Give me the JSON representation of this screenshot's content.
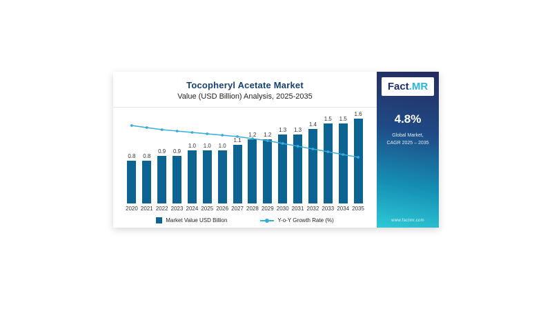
{
  "card": {
    "title": "Tocopheryl Acetate Market",
    "subtitle": "Value (USD Billion) Analysis, 2025-2035"
  },
  "legend": {
    "bar_label": "Market Value USD Billion",
    "line_label": "Y-o-Y Growth Rate (%)"
  },
  "side_panel": {
    "logo_fact": "Fact",
    "logo_mr": ".MR",
    "cagr_value": "4.8%",
    "cagr_label_line1": "Global Market,",
    "cagr_label_line2": "CAGR 2025 – 2035",
    "website": "www.factmr.com"
  },
  "colors": {
    "bar": "#0d6493",
    "line": "#38acdb",
    "title": "#16406f",
    "panel_top": "#262b5e",
    "panel_bottom": "#2fc9d6"
  },
  "chart_data": {
    "type": "bar",
    "title": "Tocopheryl Acetate Market",
    "subtitle": "Value (USD Billion) Analysis, 2025-2035",
    "categories": [
      "2020",
      "2021",
      "2022",
      "2023",
      "2024",
      "2025",
      "2026",
      "2027",
      "2028",
      "2029",
      "2030",
      "2031",
      "2032",
      "2033",
      "2034",
      "2035"
    ],
    "series": [
      {
        "name": "Market Value USD Billion",
        "type": "bar",
        "values": [
          0.8,
          0.8,
          0.9,
          0.9,
          1.0,
          1.0,
          1.0,
          1.1,
          1.2,
          1.2,
          1.3,
          1.3,
          1.4,
          1.5,
          1.5,
          1.6
        ]
      },
      {
        "name": "Y-o-Y Growth Rate (%)",
        "type": "line",
        "values": [
          5.8,
          5.65,
          5.5,
          5.4,
          5.3,
          5.2,
          5.1,
          5.0,
          4.85,
          4.7,
          4.5,
          4.3,
          4.1,
          3.9,
          3.7,
          3.5
        ]
      }
    ],
    "xlabel": "",
    "ylabel": "",
    "ylim_bar": [
      0,
      1.75
    ],
    "growth_axis_range": [
      3.2,
      6.1
    ],
    "grid": false,
    "legend_position": "bottom"
  }
}
